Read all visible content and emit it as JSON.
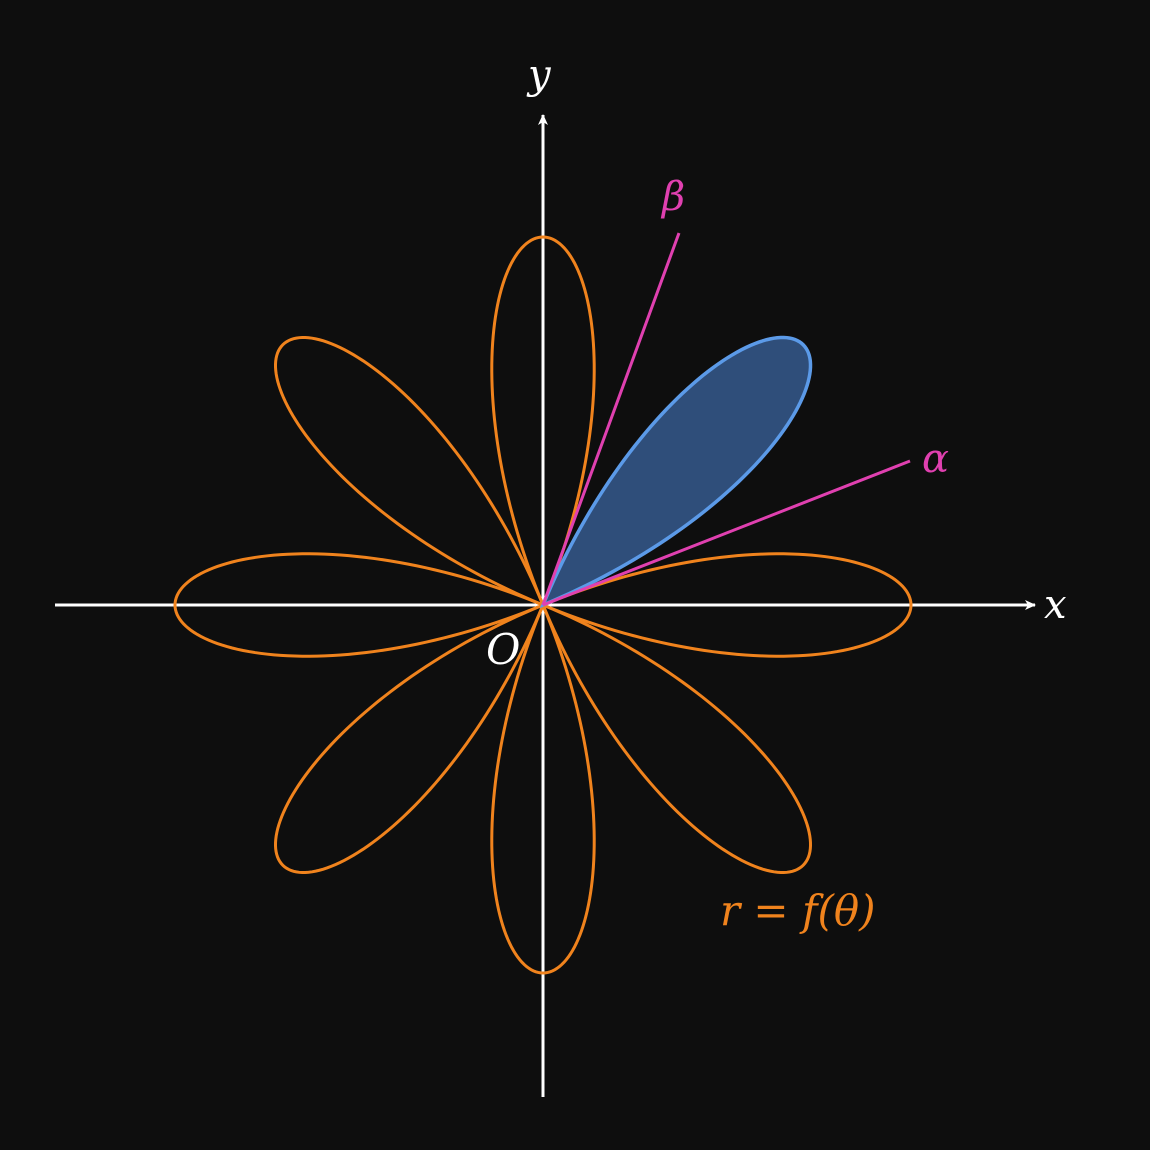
{
  "figure": {
    "curve": {
      "equation": "r = f(θ)",
      "petals": 8,
      "color": "#f0831d"
    },
    "shaded_region": {
      "from_angle_label": "α",
      "to_angle_label": "β",
      "fill_color": "#2f4e7a",
      "edge_color": "#5b9ae8"
    },
    "rays": {
      "color": "#e040b0",
      "alpha_label": "α",
      "beta_label": "β"
    },
    "axes": {
      "color": "#ffffff",
      "x_label": "x",
      "y_label": "y",
      "origin_label": "O"
    },
    "background": "#0e0e0e"
  }
}
